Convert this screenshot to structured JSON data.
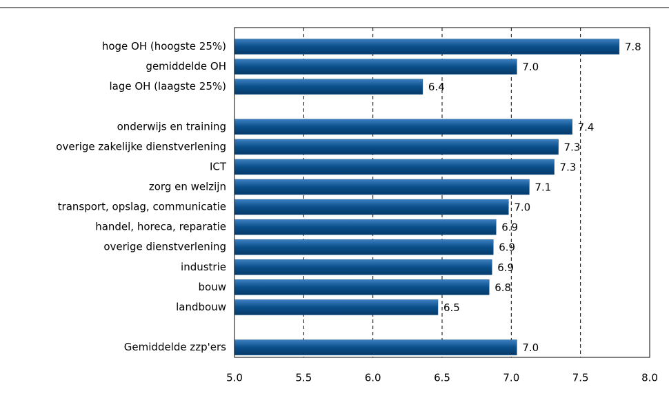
{
  "chart_data": {
    "type": "hbar",
    "categories": [
      "hoge OH (hoogste 25%)",
      "gemiddelde OH",
      "lage OH (laagste 25%)",
      null,
      "onderwijs en training",
      "overige zakelijke dienstverlening",
      "ICT",
      "zorg en welzijn",
      "transport, opslag, communicatie",
      "handel, horeca, reparatie",
      "overige dienstverlening",
      "industrie",
      "bouw",
      "landbouw",
      null,
      "Gemiddelde zzp'ers"
    ],
    "values": [
      7.78,
      7.04,
      6.36,
      null,
      7.44,
      7.34,
      7.31,
      7.13,
      6.98,
      6.89,
      6.87,
      6.86,
      6.84,
      6.47,
      null,
      7.04
    ],
    "value_labels": [
      "7.8",
      "7.0",
      "6.4",
      null,
      "7.4",
      "7.3",
      "7.3",
      "7.1",
      "7.0",
      "6.9",
      "6.9",
      "6.9",
      "6.8",
      "6.5",
      null,
      "7.0"
    ],
    "color": "#0a4f8a",
    "xlim": [
      5,
      8
    ],
    "xticks": [
      {
        "value": 5,
        "label": "5.0"
      },
      {
        "value": 5.5,
        "label": "5.5"
      },
      {
        "value": 6,
        "label": "6.0"
      },
      {
        "value": 6.5,
        "label": "6.5"
      },
      {
        "value": 7,
        "label": "7.0"
      },
      {
        "value": 7.5,
        "label": "7.5"
      },
      {
        "value": 8,
        "label": "8.0"
      }
    ],
    "grid": true
  }
}
